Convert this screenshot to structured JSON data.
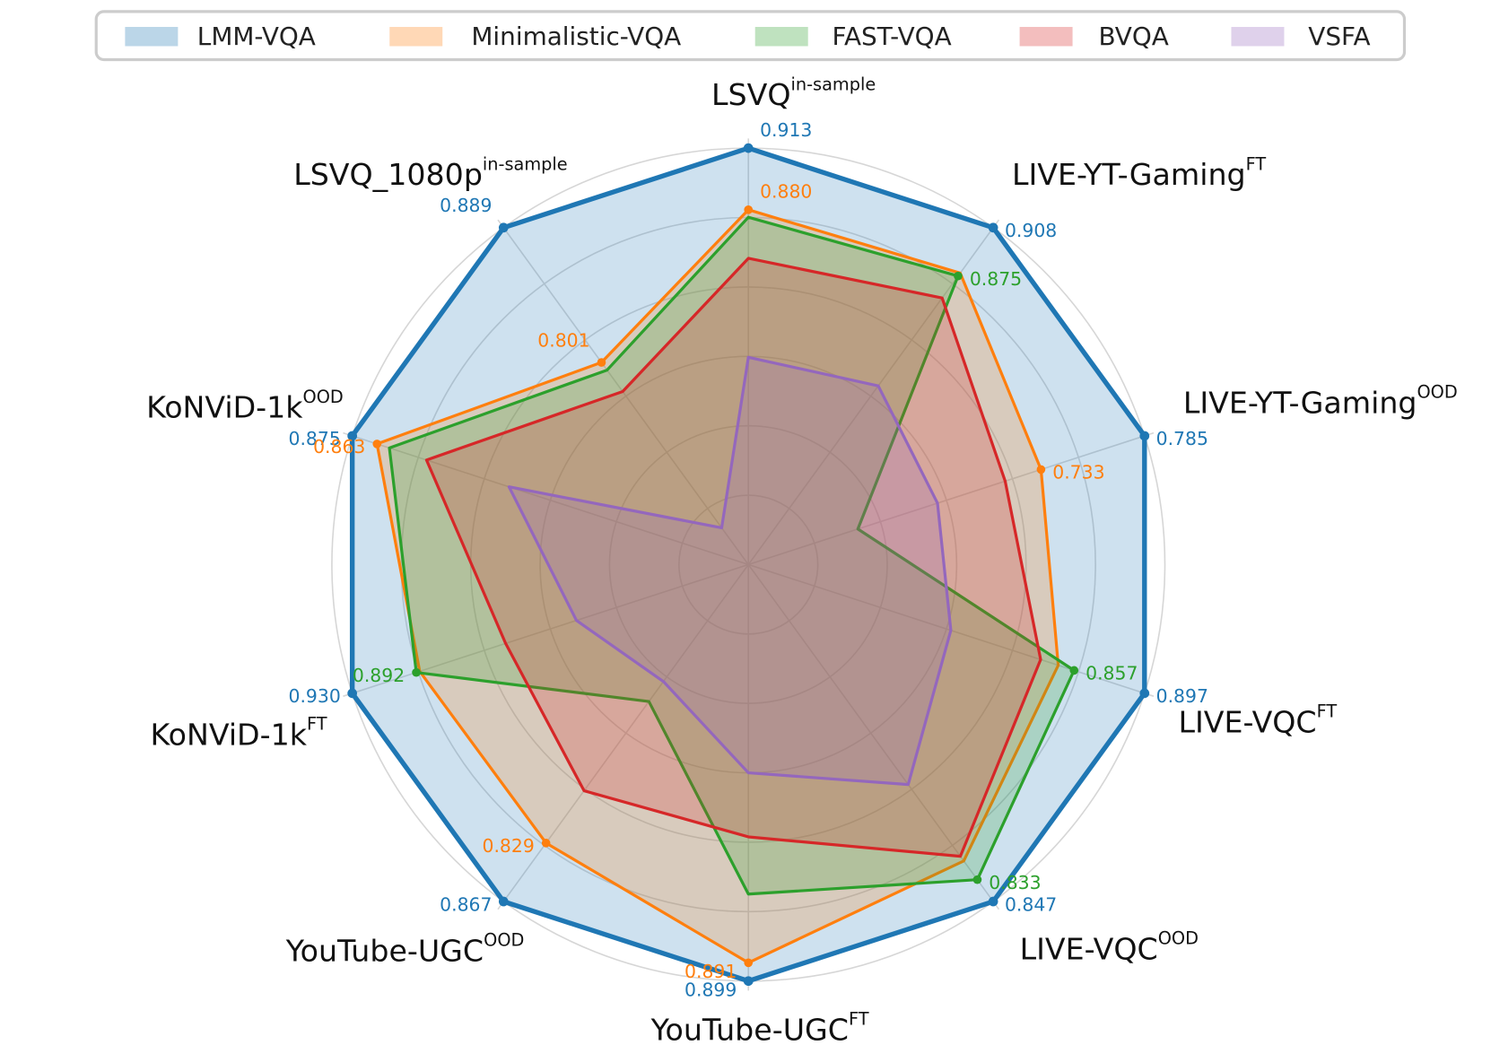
{
  "chart_data": {
    "type": "radar",
    "categories": [
      {
        "name": "LSVQ",
        "sup": "in-sample"
      },
      {
        "name": "LIVE-YT-Gaming",
        "sup": "FT"
      },
      {
        "name": "LIVE-YT-Gaming",
        "sup": "OOD"
      },
      {
        "name": "LIVE-VQC",
        "sup": "FT"
      },
      {
        "name": "LIVE-VQC",
        "sup": "OOD"
      },
      {
        "name": "YouTube-UGC",
        "sup": "FT"
      },
      {
        "name": "YouTube-UGC",
        "sup": "OOD"
      },
      {
        "name": "KoNViD-1k",
        "sup": "FT"
      },
      {
        "name": "KoNViD-1k",
        "sup": "OOD"
      },
      {
        "name": "LSVQ_1080p",
        "sup": "in-sample"
      }
    ],
    "rlim": [
      [
        0.69,
        0.913
      ],
      [
        0.678,
        0.908
      ],
      [
        0.586,
        0.785
      ],
      [
        0.672,
        0.897
      ],
      [
        0.631,
        0.847
      ],
      [
        0.717,
        0.899
      ],
      [
        0.648,
        0.867
      ],
      [
        0.695,
        0.93
      ],
      [
        0.683,
        0.875
      ],
      [
        0.669,
        0.889
      ]
    ],
    "series": [
      {
        "name": "LMM-VQA",
        "color": "#1f77b4",
        "values": [
          0.913,
          0.908,
          0.785,
          0.897,
          0.847,
          0.899,
          0.867,
          0.93,
          0.875,
          0.889
        ],
        "value_labels": [
          "0.913",
          "0.908",
          "0.785",
          "0.897",
          "0.847",
          "0.899",
          "0.867",
          "0.930",
          "0.875",
          "0.889"
        ]
      },
      {
        "name": "Minimalistic-VQA",
        "color": "#ff7f0e",
        "values": [
          0.88,
          0.877,
          0.733,
          0.848,
          0.821,
          0.891,
          0.829,
          0.89,
          0.863,
          0.801
        ],
        "value_labels": [
          "0.880",
          null,
          "0.733",
          null,
          null,
          "0.891",
          "0.829",
          null,
          "0.863",
          "0.801"
        ]
      },
      {
        "name": "FAST-VQA",
        "color": "#2ca02c",
        "values": [
          0.876,
          0.875,
          0.641,
          0.857,
          0.833,
          0.861,
          0.737,
          0.892,
          0.857,
          0.796
        ],
        "value_labels": [
          null,
          "0.875",
          null,
          "0.857",
          "0.833",
          null,
          null,
          "0.892",
          null,
          null
        ]
      },
      {
        "name": "BVQA",
        "color": "#d62728",
        "values": [
          0.854,
          0.86,
          0.715,
          0.838,
          0.818,
          0.836,
          0.795,
          0.839,
          0.839,
          0.782
        ],
        "value_labels": [
          null,
          null,
          null,
          null,
          null,
          null,
          null,
          null,
          null,
          null
        ]
      },
      {
        "name": "VSFA",
        "color": "#9467bd",
        "values": [
          0.801,
          0.8,
          0.681,
          0.787,
          0.772,
          0.808,
          0.724,
          0.797,
          0.799,
          0.693
        ],
        "value_labels": [
          null,
          null,
          null,
          null,
          null,
          null,
          null,
          null,
          null,
          null
        ]
      }
    ],
    "legend": "top"
  }
}
